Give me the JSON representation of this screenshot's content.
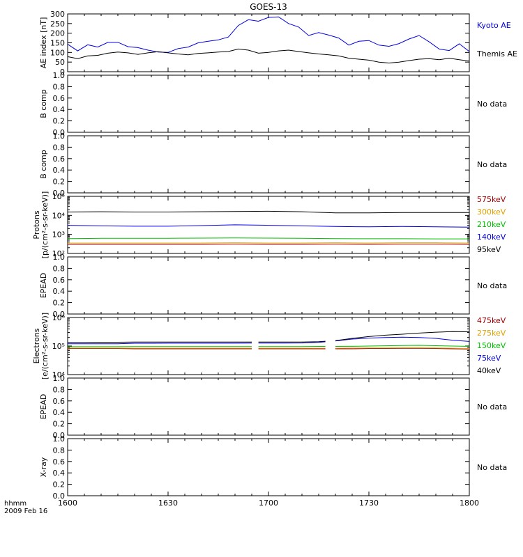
{
  "figure": {
    "title": "GOES-13",
    "time_label": "hhmm",
    "date_label": "2009 Feb 16",
    "time_ticks": [
      "1600",
      "1630",
      "1700",
      "1730",
      "1800"
    ],
    "no_data_label": "No data"
  },
  "chart_data": [
    {
      "type": "line",
      "panel": "ae",
      "ylabel": "AE index [nT]",
      "ylim": [
        0,
        300
      ],
      "y_ticks": [
        "0",
        "50",
        "100",
        "150",
        "200",
        "250",
        "300"
      ],
      "x": [
        "1600",
        "1603",
        "1606",
        "1609",
        "1612",
        "1615",
        "1618",
        "1621",
        "1624",
        "1627",
        "1630",
        "1633",
        "1636",
        "1639",
        "1642",
        "1645",
        "1648",
        "1651",
        "1654",
        "1657",
        "1700",
        "1703",
        "1706",
        "1709",
        "1712",
        "1715",
        "1718",
        "1721",
        "1724",
        "1727",
        "1730",
        "1733",
        "1736",
        "1739",
        "1742",
        "1745",
        "1748",
        "1751",
        "1754",
        "1757",
        "1800"
      ],
      "series": [
        {
          "name": "Kyoto AE",
          "color": "#0000e0",
          "values": [
            143,
            108,
            140,
            128,
            152,
            153,
            130,
            125,
            112,
            102,
            100,
            120,
            128,
            150,
            158,
            165,
            180,
            240,
            270,
            262,
            282,
            285,
            250,
            232,
            188,
            203,
            190,
            175,
            138,
            158,
            162,
            138,
            132,
            146,
            170,
            188,
            155,
            118,
            110,
            145,
            105
          ]
        },
        {
          "name": "Themis AE",
          "color": "#000000",
          "values": [
            78,
            68,
            82,
            85,
            96,
            102,
            98,
            90,
            98,
            104,
            98,
            92,
            88,
            95,
            98,
            102,
            105,
            118,
            112,
            96,
            100,
            108,
            112,
            105,
            98,
            92,
            88,
            82,
            70,
            65,
            60,
            50,
            45,
            50,
            58,
            65,
            68,
            62,
            70,
            62,
            55
          ]
        }
      ]
    },
    {
      "type": "line",
      "panel": "b-comp-1",
      "ylabel": "B comp",
      "ylim": [
        0,
        1
      ],
      "y_ticks": [
        "0.0",
        "0.2",
        "0.4",
        "0.6",
        "0.8",
        "1.0"
      ],
      "status": "No data"
    },
    {
      "type": "line",
      "panel": "b-comp-2",
      "ylabel": "B comp",
      "ylim": [
        0,
        1
      ],
      "y_ticks": [
        "0.0",
        "0.2",
        "0.4",
        "0.6",
        "0.8",
        "1.0"
      ],
      "status": "No data"
    },
    {
      "type": "line",
      "panel": "protons",
      "ylabel_line1": "Protons",
      "ylabel_line2": "[p/(cm²-s-sr-keV)]",
      "log_scale": true,
      "ylim": [
        100,
        100000
      ],
      "y_ticks": [
        "10²",
        "10³",
        "10⁴",
        "10⁵"
      ],
      "x": [
        "1600",
        "1610",
        "1620",
        "1630",
        "1640",
        "1650",
        "1700",
        "1710",
        "1720",
        "1730",
        "1740",
        "1750",
        "1800"
      ],
      "series": [
        {
          "name": "575keV",
          "color": "#a00000",
          "values": [
            300,
            300,
            300,
            300,
            300,
            310,
            300,
            300,
            310,
            300,
            310,
            310,
            300
          ]
        },
        {
          "name": "300keV",
          "color": "#e0a000",
          "values": [
            350,
            350,
            350,
            350,
            350,
            360,
            350,
            350,
            360,
            350,
            360,
            360,
            350
          ]
        },
        {
          "name": "210keV",
          "color": "#00c000",
          "values": [
            600,
            620,
            620,
            630,
            640,
            650,
            640,
            620,
            600,
            590,
            590,
            580,
            580
          ]
        },
        {
          "name": "140keV",
          "color": "#0000e0",
          "values": [
            3000,
            2800,
            2700,
            2700,
            2900,
            3200,
            3000,
            2800,
            2600,
            2500,
            2600,
            2500,
            2400
          ]
        },
        {
          "name": "95keV",
          "color": "#000000",
          "values": [
            15000,
            15500,
            15000,
            15000,
            15500,
            16000,
            16500,
            15500,
            13500,
            13500,
            14000,
            14000,
            14000
          ]
        }
      ]
    },
    {
      "type": "line",
      "panel": "epead-1",
      "ylabel": "EPEAD",
      "ylim": [
        0,
        1
      ],
      "y_ticks": [
        "0.0",
        "0.2",
        "0.4",
        "0.6",
        "0.8",
        "1.0"
      ],
      "status": "No data"
    },
    {
      "type": "line",
      "panel": "electrons",
      "ylabel_line1": "Electrons",
      "ylabel_line2": "[e/(cm²-s-sr-keV)]",
      "log_scale": true,
      "ylim": [
        10000,
        1000000
      ],
      "y_ticks": [
        "10⁴",
        "10⁵",
        "10⁶"
      ],
      "x": [
        "1600",
        "1605",
        "1610",
        "1615",
        "1620",
        "1625",
        "1630",
        "1635",
        "1640",
        "1645",
        "1650",
        "1655",
        "1700",
        "1705",
        "1710",
        "1715",
        "1720",
        "1725",
        "1730",
        "1735",
        "1740",
        "1745",
        "1750",
        "1755",
        "1800"
      ],
      "gaps": [
        [
          "1655",
          "1657"
        ],
        [
          "1717",
          "1720"
        ]
      ],
      "series": [
        {
          "name": "475keV",
          "color": "#a00000",
          "values": [
            82000,
            82000,
            82000,
            82000,
            80000,
            80000,
            80000,
            80000,
            80000,
            80000,
            80000,
            80000,
            80000,
            80000,
            80000,
            80000,
            80000,
            80000,
            82000,
            82000,
            83000,
            83000,
            82000,
            80000,
            78000
          ]
        },
        {
          "name": "275keV",
          "color": "#e0a000",
          "values": [
            85000,
            85000,
            85000,
            85000,
            84000,
            84000,
            84000,
            84000,
            84000,
            84000,
            84000,
            84000,
            84000,
            84000,
            84000,
            84000,
            84000,
            85000,
            86000,
            86000,
            87000,
            87000,
            86000,
            84000,
            82000
          ]
        },
        {
          "name": "150keV",
          "color": "#00c000",
          "values": [
            95000,
            95000,
            95000,
            95000,
            96000,
            96000,
            96000,
            96000,
            96000,
            96000,
            96000,
            96000,
            96000,
            96000,
            96000,
            97000,
            97000,
            98000,
            100000,
            102000,
            104000,
            106000,
            103000,
            100000,
            97000
          ]
        },
        {
          "name": "75keV",
          "color": "#0000e0",
          "values": [
            120000,
            120000,
            120000,
            120000,
            125000,
            125000,
            126000,
            126000,
            126000,
            126000,
            126000,
            127000,
            127000,
            127000,
            128000,
            135000,
            150000,
            175000,
            190000,
            200000,
            205000,
            200000,
            185000,
            160000,
            145000
          ]
        },
        {
          "name": "40keV",
          "color": "#000000",
          "values": [
            135000,
            135000,
            136000,
            136000,
            138000,
            138000,
            138000,
            138000,
            138000,
            138000,
            138000,
            138000,
            138000,
            138000,
            138000,
            142000,
            155000,
            185000,
            215000,
            240000,
            260000,
            285000,
            305000,
            320000,
            315000
          ]
        }
      ]
    },
    {
      "type": "line",
      "panel": "epead-2",
      "ylabel": "EPEAD",
      "ylim": [
        0,
        1
      ],
      "y_ticks": [
        "0.0",
        "0.2",
        "0.4",
        "0.6",
        "0.8",
        "1.0"
      ],
      "status": "No data"
    },
    {
      "type": "line",
      "panel": "x-ray",
      "ylabel": "X-ray",
      "ylim": [
        0,
        1
      ],
      "y_ticks": [
        "0.0",
        "0.2",
        "0.4",
        "0.6",
        "0.8",
        "1.0"
      ],
      "status": "No data"
    }
  ]
}
